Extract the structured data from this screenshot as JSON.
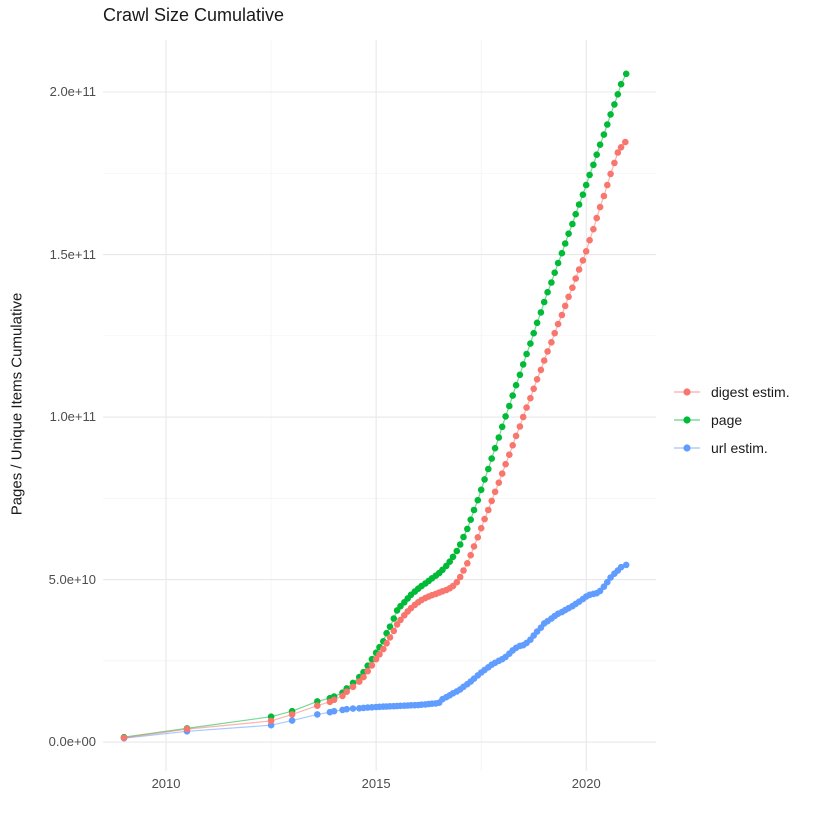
{
  "chart_data": {
    "type": "scatter",
    "title": "Crawl Size Cumulative",
    "xlabel": "",
    "ylabel": "Pages / Unique Items Cumulative",
    "grid": true,
    "x_domain": [
      2008.5,
      2021.66
    ],
    "y_domain_1e10": [
      -0.89,
      21.6
    ],
    "value_unit": "pages, stored in units of 1e10",
    "x_ticks": [
      {
        "label": "2010",
        "value": 2010
      },
      {
        "label": "2015",
        "value": 2015
      },
      {
        "label": "2020",
        "value": 2020
      }
    ],
    "x_minor_ticks": [
      2012.5,
      2017.5
    ],
    "y_ticks": [
      {
        "label": "0.0e+00",
        "value": 0
      },
      {
        "label": "5.0e+10",
        "value": 5
      },
      {
        "label": "1.0e+11",
        "value": 10
      },
      {
        "label": "1.5e+11",
        "value": 15
      },
      {
        "label": "2.0e+11",
        "value": 20
      }
    ],
    "y_minor_ticks": [
      2.5,
      7.5,
      12.5,
      17.5
    ],
    "legend": {
      "position": "right",
      "entries": [
        {
          "label": "digest estim.",
          "color": "#F8766D"
        },
        {
          "label": "page",
          "color": "#00BA38"
        },
        {
          "label": "url estim.",
          "color": "#619CFF"
        }
      ]
    },
    "series": [
      {
        "name": "digest estim.",
        "key": "digest-estim",
        "color": "#F8766D",
        "points": [
          [
            2009.0,
            0.13
          ],
          [
            2010.5,
            0.4
          ],
          [
            2012.5,
            0.65
          ],
          [
            2013.0,
            0.85
          ],
          [
            2013.6,
            1.12
          ],
          [
            2013.9,
            1.24
          ],
          [
            2014.0,
            1.3
          ],
          [
            2014.2,
            1.42
          ],
          [
            2014.3,
            1.55
          ],
          [
            2014.45,
            1.7
          ],
          [
            2014.6,
            1.86
          ],
          [
            2014.7,
            2.0
          ],
          [
            2014.8,
            2.18
          ],
          [
            2014.9,
            2.36
          ],
          [
            2015.0,
            2.55
          ],
          [
            2015.08,
            2.7
          ],
          [
            2015.17,
            2.86
          ],
          [
            2015.25,
            3.04
          ],
          [
            2015.33,
            3.22
          ],
          [
            2015.42,
            3.42
          ],
          [
            2015.5,
            3.62
          ],
          [
            2015.58,
            3.76
          ],
          [
            2015.67,
            3.9
          ],
          [
            2015.75,
            4.02
          ],
          [
            2015.83,
            4.12
          ],
          [
            2015.92,
            4.22
          ],
          [
            2016.0,
            4.3
          ],
          [
            2016.08,
            4.37
          ],
          [
            2016.17,
            4.43
          ],
          [
            2016.25,
            4.48
          ],
          [
            2016.33,
            4.52
          ],
          [
            2016.42,
            4.56
          ],
          [
            2016.5,
            4.6
          ],
          [
            2016.58,
            4.64
          ],
          [
            2016.67,
            4.68
          ],
          [
            2016.75,
            4.73
          ],
          [
            2016.83,
            4.8
          ],
          [
            2016.92,
            4.92
          ],
          [
            2017.0,
            5.08
          ],
          [
            2017.08,
            5.28
          ],
          [
            2017.17,
            5.5
          ],
          [
            2017.25,
            5.75
          ],
          [
            2017.33,
            6.02
          ],
          [
            2017.42,
            6.3
          ],
          [
            2017.5,
            6.58
          ],
          [
            2017.58,
            6.86
          ],
          [
            2017.67,
            7.14
          ],
          [
            2017.75,
            7.42
          ],
          [
            2017.83,
            7.7
          ],
          [
            2017.92,
            7.98
          ],
          [
            2018.0,
            8.26
          ],
          [
            2018.08,
            8.55
          ],
          [
            2018.17,
            8.84
          ],
          [
            2018.25,
            9.13
          ],
          [
            2018.33,
            9.42
          ],
          [
            2018.42,
            9.71
          ],
          [
            2018.5,
            10.0
          ],
          [
            2018.58,
            10.29
          ],
          [
            2018.67,
            10.58
          ],
          [
            2018.75,
            10.87
          ],
          [
            2018.83,
            11.16
          ],
          [
            2018.92,
            11.45
          ],
          [
            2019.0,
            11.74
          ],
          [
            2019.08,
            12.02
          ],
          [
            2019.17,
            12.3
          ],
          [
            2019.25,
            12.58
          ],
          [
            2019.33,
            12.86
          ],
          [
            2019.42,
            13.14
          ],
          [
            2019.5,
            13.42
          ],
          [
            2019.58,
            13.7
          ],
          [
            2019.67,
            13.98
          ],
          [
            2019.75,
            14.26
          ],
          [
            2019.83,
            14.54
          ],
          [
            2019.92,
            14.82
          ],
          [
            2020.0,
            15.1
          ],
          [
            2020.08,
            15.44
          ],
          [
            2020.17,
            15.78
          ],
          [
            2020.25,
            16.12
          ],
          [
            2020.33,
            16.46
          ],
          [
            2020.42,
            16.8
          ],
          [
            2020.5,
            17.14
          ],
          [
            2020.58,
            17.48
          ],
          [
            2020.67,
            17.82
          ],
          [
            2020.75,
            18.14
          ],
          [
            2020.83,
            18.3
          ],
          [
            2020.93,
            18.46
          ]
        ]
      },
      {
        "name": "page",
        "key": "page",
        "color": "#00BA38",
        "points": [
          [
            2009.0,
            0.15
          ],
          [
            2010.5,
            0.42
          ],
          [
            2012.5,
            0.78
          ],
          [
            2013.0,
            0.95
          ],
          [
            2013.6,
            1.25
          ],
          [
            2013.9,
            1.35
          ],
          [
            2014.0,
            1.4
          ],
          [
            2014.2,
            1.52
          ],
          [
            2014.3,
            1.65
          ],
          [
            2014.45,
            1.82
          ],
          [
            2014.6,
            2.0
          ],
          [
            2014.7,
            2.15
          ],
          [
            2014.8,
            2.35
          ],
          [
            2014.9,
            2.55
          ],
          [
            2015.0,
            2.75
          ],
          [
            2015.08,
            2.92
          ],
          [
            2015.17,
            3.1
          ],
          [
            2015.25,
            3.35
          ],
          [
            2015.33,
            3.55
          ],
          [
            2015.42,
            3.8
          ],
          [
            2015.5,
            4.05
          ],
          [
            2015.58,
            4.18
          ],
          [
            2015.67,
            4.3
          ],
          [
            2015.75,
            4.42
          ],
          [
            2015.83,
            4.53
          ],
          [
            2015.92,
            4.63
          ],
          [
            2016.0,
            4.72
          ],
          [
            2016.08,
            4.8
          ],
          [
            2016.17,
            4.88
          ],
          [
            2016.25,
            4.96
          ],
          [
            2016.33,
            5.04
          ],
          [
            2016.42,
            5.12
          ],
          [
            2016.5,
            5.2
          ],
          [
            2016.58,
            5.3
          ],
          [
            2016.67,
            5.42
          ],
          [
            2016.75,
            5.55
          ],
          [
            2016.83,
            5.7
          ],
          [
            2016.92,
            5.88
          ],
          [
            2017.0,
            6.08
          ],
          [
            2017.08,
            6.31
          ],
          [
            2017.17,
            6.56
          ],
          [
            2017.25,
            6.84
          ],
          [
            2017.33,
            7.14
          ],
          [
            2017.42,
            7.44
          ],
          [
            2017.5,
            7.76
          ],
          [
            2017.58,
            8.08
          ],
          [
            2017.67,
            8.4
          ],
          [
            2017.75,
            8.72
          ],
          [
            2017.83,
            9.04
          ],
          [
            2017.92,
            9.37
          ],
          [
            2018.0,
            9.7
          ],
          [
            2018.08,
            10.02
          ],
          [
            2018.17,
            10.34
          ],
          [
            2018.25,
            10.66
          ],
          [
            2018.33,
            10.98
          ],
          [
            2018.42,
            11.3
          ],
          [
            2018.5,
            11.62
          ],
          [
            2018.58,
            11.94
          ],
          [
            2018.67,
            12.26
          ],
          [
            2018.75,
            12.58
          ],
          [
            2018.83,
            12.9
          ],
          [
            2018.92,
            13.22
          ],
          [
            2019.0,
            13.54
          ],
          [
            2019.08,
            13.84
          ],
          [
            2019.17,
            14.14
          ],
          [
            2019.25,
            14.44
          ],
          [
            2019.33,
            14.74
          ],
          [
            2019.42,
            15.04
          ],
          [
            2019.5,
            15.34
          ],
          [
            2019.58,
            15.64
          ],
          [
            2019.67,
            15.94
          ],
          [
            2019.75,
            16.24
          ],
          [
            2019.83,
            16.54
          ],
          [
            2019.92,
            16.84
          ],
          [
            2020.0,
            17.14
          ],
          [
            2020.08,
            17.45
          ],
          [
            2020.17,
            17.76
          ],
          [
            2020.25,
            18.07
          ],
          [
            2020.33,
            18.38
          ],
          [
            2020.42,
            18.69
          ],
          [
            2020.5,
            19.0
          ],
          [
            2020.58,
            19.31
          ],
          [
            2020.67,
            19.62
          ],
          [
            2020.75,
            19.93
          ],
          [
            2020.83,
            20.24
          ],
          [
            2020.95,
            20.56
          ]
        ]
      },
      {
        "name": "url estim.",
        "key": "url-estim",
        "color": "#619CFF",
        "points": [
          [
            2009.0,
            0.12
          ],
          [
            2010.5,
            0.33
          ],
          [
            2012.5,
            0.52
          ],
          [
            2013.0,
            0.66
          ],
          [
            2013.6,
            0.85
          ],
          [
            2013.9,
            0.92
          ],
          [
            2014.0,
            0.95
          ],
          [
            2014.2,
            0.99
          ],
          [
            2014.3,
            1.01
          ],
          [
            2014.45,
            1.03
          ],
          [
            2014.6,
            1.04
          ],
          [
            2014.7,
            1.05
          ],
          [
            2014.8,
            1.06
          ],
          [
            2014.9,
            1.07
          ],
          [
            2015.0,
            1.08
          ],
          [
            2015.08,
            1.085
          ],
          [
            2015.17,
            1.09
          ],
          [
            2015.25,
            1.095
          ],
          [
            2015.33,
            1.1
          ],
          [
            2015.42,
            1.105
          ],
          [
            2015.5,
            1.11
          ],
          [
            2015.58,
            1.115
          ],
          [
            2015.67,
            1.12
          ],
          [
            2015.75,
            1.125
          ],
          [
            2015.83,
            1.13
          ],
          [
            2015.92,
            1.135
          ],
          [
            2016.0,
            1.14
          ],
          [
            2016.08,
            1.15
          ],
          [
            2016.17,
            1.16
          ],
          [
            2016.25,
            1.17
          ],
          [
            2016.33,
            1.18
          ],
          [
            2016.42,
            1.19
          ],
          [
            2016.5,
            1.21
          ],
          [
            2016.58,
            1.32
          ],
          [
            2016.67,
            1.38
          ],
          [
            2016.75,
            1.44
          ],
          [
            2016.83,
            1.5
          ],
          [
            2016.92,
            1.56
          ],
          [
            2017.0,
            1.62
          ],
          [
            2017.08,
            1.7
          ],
          [
            2017.17,
            1.78
          ],
          [
            2017.25,
            1.86
          ],
          [
            2017.33,
            1.95
          ],
          [
            2017.42,
            2.05
          ],
          [
            2017.5,
            2.14
          ],
          [
            2017.58,
            2.22
          ],
          [
            2017.67,
            2.3
          ],
          [
            2017.75,
            2.38
          ],
          [
            2017.83,
            2.44
          ],
          [
            2017.92,
            2.5
          ],
          [
            2018.0,
            2.55
          ],
          [
            2018.08,
            2.62
          ],
          [
            2018.17,
            2.72
          ],
          [
            2018.25,
            2.82
          ],
          [
            2018.33,
            2.9
          ],
          [
            2018.42,
            2.96
          ],
          [
            2018.5,
            2.98
          ],
          [
            2018.58,
            3.05
          ],
          [
            2018.67,
            3.15
          ],
          [
            2018.75,
            3.28
          ],
          [
            2018.83,
            3.4
          ],
          [
            2018.92,
            3.52
          ],
          [
            2019.0,
            3.65
          ],
          [
            2019.08,
            3.72
          ],
          [
            2019.17,
            3.8
          ],
          [
            2019.25,
            3.88
          ],
          [
            2019.33,
            3.95
          ],
          [
            2019.42,
            4.0
          ],
          [
            2019.5,
            4.06
          ],
          [
            2019.58,
            4.12
          ],
          [
            2019.67,
            4.18
          ],
          [
            2019.75,
            4.25
          ],
          [
            2019.83,
            4.32
          ],
          [
            2019.92,
            4.4
          ],
          [
            2020.0,
            4.48
          ],
          [
            2020.08,
            4.53
          ],
          [
            2020.17,
            4.56
          ],
          [
            2020.25,
            4.58
          ],
          [
            2020.33,
            4.65
          ],
          [
            2020.42,
            4.78
          ],
          [
            2020.5,
            4.92
          ],
          [
            2020.58,
            5.06
          ],
          [
            2020.67,
            5.18
          ],
          [
            2020.75,
            5.28
          ],
          [
            2020.83,
            5.38
          ],
          [
            2020.95,
            5.45
          ]
        ]
      }
    ]
  }
}
